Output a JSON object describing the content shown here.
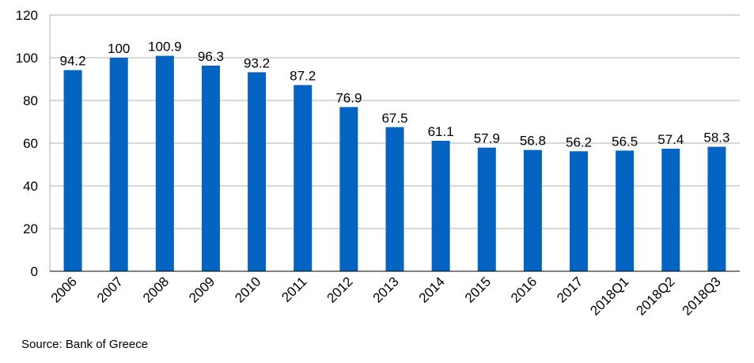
{
  "chart_data": {
    "type": "bar",
    "categories": [
      "2006",
      "2007",
      "2008",
      "2009",
      "2010",
      "2011",
      "2012",
      "2013",
      "2014",
      "2015",
      "2016",
      "2017",
      "2018Q1",
      "2018Q2",
      "2018Q3"
    ],
    "values": [
      94.2,
      100,
      100.9,
      96.3,
      93.2,
      87.2,
      76.9,
      67.5,
      61.1,
      57.9,
      56.8,
      56.2,
      56.5,
      57.4,
      58.3
    ],
    "value_labels": [
      "94.2",
      "100",
      "100.9",
      "96.3",
      "93.2",
      "87.2",
      "76.9",
      "67.5",
      "61.1",
      "57.9",
      "56.8",
      "56.2",
      "56.5",
      "57.4",
      "58.3"
    ],
    "ylim": [
      0,
      120
    ],
    "yticks": [
      "0",
      "20",
      "40",
      "60",
      "80",
      "100",
      "120"
    ],
    "grid": true,
    "bar_color": "#0563C1",
    "grid_color": "#b0b0b0",
    "axis_color": "#000000"
  },
  "source": "Source: Bank of Greece"
}
